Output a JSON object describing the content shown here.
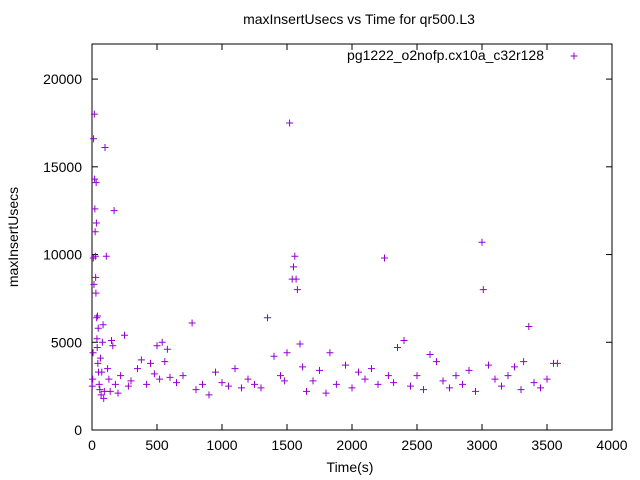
{
  "chart_data": {
    "type": "scatter",
    "title": "maxInsertUsecs vs Time for qr500.L3",
    "xlabel": "Time(s)",
    "ylabel": "maxInsertUsecs",
    "xlim": [
      0,
      4000
    ],
    "ylim": [
      0,
      22000
    ],
    "x_ticks": [
      0,
      500,
      1000,
      1500,
      2000,
      2500,
      3000,
      3500,
      4000
    ],
    "y_ticks": [
      0,
      5000,
      10000,
      15000,
      20000
    ],
    "grid": false,
    "legend_position": "top-right",
    "marker": "+",
    "series": [
      {
        "name": "pg1222_o2nofp.cx10a_c32r128",
        "color": "#9400d3",
        "points": [
          [
            2,
            2500
          ],
          [
            5,
            2900
          ],
          [
            8,
            4400
          ],
          [
            10,
            9800
          ],
          [
            12,
            16600
          ],
          [
            15,
            8300
          ],
          [
            18,
            18000
          ],
          [
            20,
            14300
          ],
          [
            22,
            12600
          ],
          [
            24,
            11300
          ],
          [
            26,
            9900
          ],
          [
            28,
            8700
          ],
          [
            30,
            7800
          ],
          [
            32,
            14100
          ],
          [
            34,
            11800
          ],
          [
            36,
            6400
          ],
          [
            38,
            5200
          ],
          [
            40,
            4700
          ],
          [
            42,
            6500
          ],
          [
            45,
            3800
          ],
          [
            48,
            5800
          ],
          [
            50,
            3300
          ],
          [
            55,
            2600
          ],
          [
            60,
            2300
          ],
          [
            65,
            4100
          ],
          [
            70,
            2000
          ],
          [
            75,
            3300
          ],
          [
            80,
            5000
          ],
          [
            85,
            6000
          ],
          [
            90,
            1800
          ],
          [
            95,
            2200
          ],
          [
            100,
            16100
          ],
          [
            110,
            9900
          ],
          [
            120,
            3500
          ],
          [
            130,
            2900
          ],
          [
            140,
            2200
          ],
          [
            150,
            5100
          ],
          [
            160,
            4800
          ],
          [
            170,
            12500
          ],
          [
            180,
            2600
          ],
          [
            200,
            2100
          ],
          [
            220,
            3100
          ],
          [
            250,
            5400
          ],
          [
            280,
            2500
          ],
          [
            300,
            2800
          ],
          [
            350,
            3500
          ],
          [
            380,
            4000
          ],
          [
            420,
            2600
          ],
          [
            450,
            3800
          ],
          [
            480,
            3200
          ],
          [
            500,
            4800
          ],
          [
            520,
            2900
          ],
          [
            540,
            5000
          ],
          [
            560,
            3900
          ],
          [
            580,
            4600
          ],
          [
            600,
            3000
          ],
          [
            650,
            2700
          ],
          [
            700,
            3100
          ],
          [
            770,
            6100
          ],
          [
            800,
            2300
          ],
          [
            850,
            2600
          ],
          [
            900,
            2000
          ],
          [
            950,
            3300
          ],
          [
            1000,
            2700
          ],
          [
            1050,
            2500
          ],
          [
            1100,
            3500
          ],
          [
            1150,
            2400
          ],
          [
            1200,
            2900
          ],
          [
            1250,
            2600
          ],
          [
            1300,
            2400
          ],
          [
            1350,
            6400
          ],
          [
            1400,
            4200
          ],
          [
            1450,
            3100
          ],
          [
            1480,
            2800
          ],
          [
            1500,
            4400
          ],
          [
            1520,
            17500
          ],
          [
            1540,
            8600
          ],
          [
            1550,
            9300
          ],
          [
            1560,
            9900
          ],
          [
            1570,
            8600
          ],
          [
            1580,
            8000
          ],
          [
            1600,
            4900
          ],
          [
            1620,
            3600
          ],
          [
            1650,
            2200
          ],
          [
            1700,
            2800
          ],
          [
            1750,
            3400
          ],
          [
            1800,
            2100
          ],
          [
            1830,
            4400
          ],
          [
            1880,
            2600
          ],
          [
            1950,
            3700
          ],
          [
            2000,
            2400
          ],
          [
            2050,
            3300
          ],
          [
            2100,
            2900
          ],
          [
            2150,
            3500
          ],
          [
            2200,
            2600
          ],
          [
            2250,
            9800
          ],
          [
            2280,
            3100
          ],
          [
            2320,
            2700
          ],
          [
            2350,
            4700
          ],
          [
            2400,
            5100
          ],
          [
            2450,
            2500
          ],
          [
            2500,
            3100
          ],
          [
            2550,
            2300
          ],
          [
            2600,
            4300
          ],
          [
            2650,
            3900
          ],
          [
            2700,
            2800
          ],
          [
            2750,
            2400
          ],
          [
            2800,
            3100
          ],
          [
            2850,
            2600
          ],
          [
            2900,
            3400
          ],
          [
            2950,
            2200
          ],
          [
            3000,
            10700
          ],
          [
            3010,
            8000
          ],
          [
            3050,
            3700
          ],
          [
            3100,
            2900
          ],
          [
            3150,
            2500
          ],
          [
            3200,
            3100
          ],
          [
            3250,
            3600
          ],
          [
            3300,
            2300
          ],
          [
            3320,
            3900
          ],
          [
            3360,
            5900
          ],
          [
            3400,
            2700
          ],
          [
            3450,
            2400
          ],
          [
            3500,
            2900
          ],
          [
            3550,
            3800
          ],
          [
            3580,
            3800
          ]
        ]
      }
    ]
  }
}
